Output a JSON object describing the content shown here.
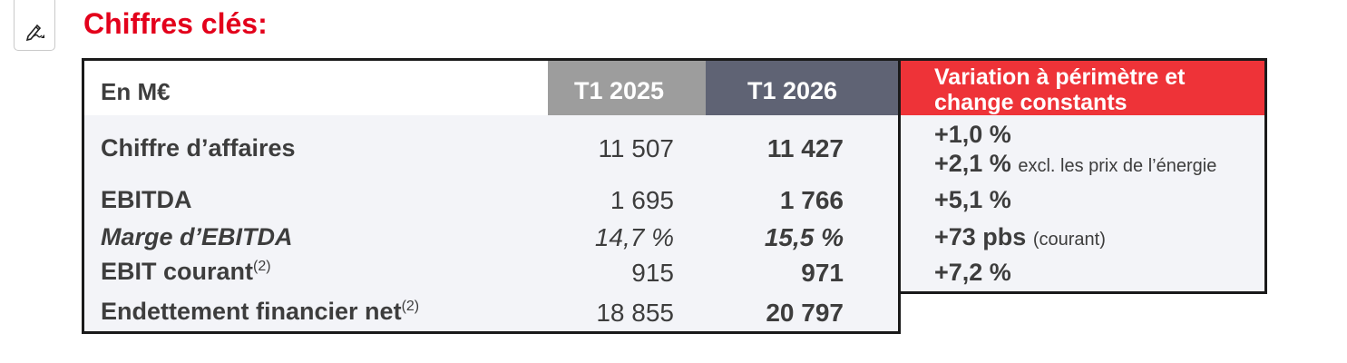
{
  "toolbar": {
    "edit_icon": "pen-edit-icon"
  },
  "title": "Chiffres clés:",
  "table": {
    "headers": {
      "label": "En M€",
      "col_2025": "T1 2025",
      "col_2026": "T1 2026",
      "variation_line1": "Variation à périmètre et",
      "variation_line2": "change constants"
    },
    "rows": [
      {
        "label": "Chiffre d’affaires",
        "footnote": "",
        "v2025": "11 507",
        "v2026": "11 427",
        "var1": "+1,0 %",
        "var2": "+2,1 %",
        "var2_note": "excl. les prix de l’énergie"
      },
      {
        "label": "EBITDA",
        "footnote": "",
        "v2025": "1 695",
        "v2026": "1 766",
        "var1": "+5,1 %"
      },
      {
        "label": "Marge d’EBITDA",
        "footnote": "",
        "v2025": "14,7 %",
        "v2026": "15,5 %",
        "var1": "+73 pbs",
        "var1_note": "(courant)"
      },
      {
        "label": "EBIT courant",
        "footnote": "(2)",
        "v2025": "915",
        "v2026": "971",
        "var1": "+7,2 %"
      },
      {
        "label": "Endettement financier net",
        "footnote": "(2)",
        "v2025": "18 855",
        "v2026": "20 797"
      }
    ]
  },
  "colors": {
    "title": "#e3001b",
    "header_2025": "#9d9d9d",
    "header_2026": "#5f6374",
    "header_variation": "#ee3338",
    "body_background": "#f3f4f8"
  }
}
